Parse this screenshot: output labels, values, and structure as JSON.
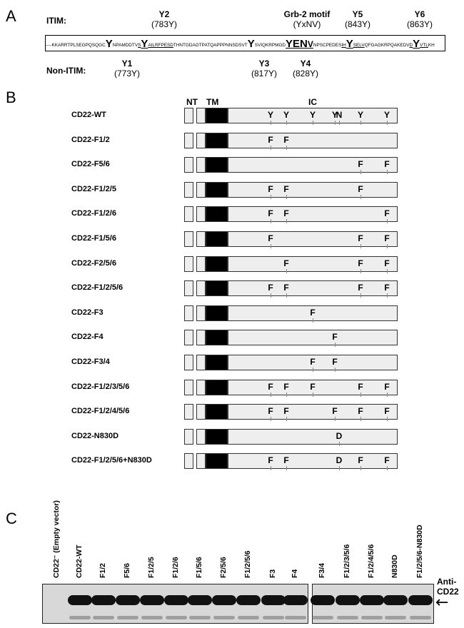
{
  "panels": {
    "a": "A",
    "b": "B",
    "c": "C"
  },
  "panel_a": {
    "itim_label": "ITIM:",
    "non_itim_label": "Non-ITIM:",
    "grb2_title": "Grb-2 motif",
    "grb2_sub": "(YxNV)",
    "tyrosines": [
      {
        "name": "Y1",
        "pos": "(773Y)"
      },
      {
        "name": "Y2",
        "pos": "(783Y)"
      },
      {
        "name": "Y3",
        "pos": "(817Y)"
      },
      {
        "name": "Y4",
        "pos": "(828Y)"
      },
      {
        "name": "Y5",
        "pos": "(843Y)"
      },
      {
        "name": "Y6",
        "pos": "(863Y)"
      }
    ],
    "sequence": {
      "s1": "----KKARRTPLSEGPQSQGC",
      "y1": "Y",
      "s2": "NPAMDDTV",
      "u1": "S",
      "y2": "Y",
      "u2": "AILRFPESD",
      "s3": "THNTGDAGTPATQAPPPNNSDSVT",
      "y3": "Y",
      "s4": "SVIQKRPMGD",
      "y4": "Y",
      "en": "EN",
      "v": "V",
      "s5": "NPSCPEDES",
      "u3": "IH",
      "y5": "Y",
      "u4": "SELV",
      "s6": "QFGAGKRPQAKEDV",
      "u5": "D",
      "y6": "Y",
      "u6": "VTL",
      "s7": "KH"
    }
  },
  "panel_b": {
    "domains": {
      "nt": "NT",
      "tm": "TM",
      "ic": "IC"
    },
    "constructs": [
      {
        "name": "CD22-WT",
        "marks": [
          "Y",
          "Y",
          "Y",
          "Y",
          "N",
          "Y",
          "Y"
        ]
      },
      {
        "name": "CD22-F1/2",
        "marks": [
          "F",
          "F",
          "",
          "",
          "",
          "",
          ""
        ]
      },
      {
        "name": "CD22-F5/6",
        "marks": [
          "",
          "",
          "",
          "",
          "",
          "F",
          "F"
        ]
      },
      {
        "name": "CD22-F1/2/5",
        "marks": [
          "F",
          "F",
          "",
          "",
          "",
          "F",
          ""
        ]
      },
      {
        "name": "CD22-F1/2/6",
        "marks": [
          "F",
          "F",
          "",
          "",
          "",
          "",
          "F"
        ]
      },
      {
        "name": "CD22-F1/5/6",
        "marks": [
          "F",
          "",
          "",
          "",
          "",
          "F",
          "F"
        ]
      },
      {
        "name": "CD22-F2/5/6",
        "marks": [
          "",
          "F",
          "",
          "",
          "",
          "F",
          "F"
        ]
      },
      {
        "name": "CD22-F1/2/5/6",
        "marks": [
          "F",
          "F",
          "",
          "",
          "",
          "F",
          "F"
        ]
      },
      {
        "name": "CD22-F3",
        "marks": [
          "",
          "",
          "F",
          "",
          "",
          "",
          ""
        ]
      },
      {
        "name": "CD22-F4",
        "marks": [
          "",
          "",
          "",
          "F",
          "",
          "",
          ""
        ]
      },
      {
        "name": "CD22-F3/4",
        "marks": [
          "",
          "",
          "F",
          "F",
          "",
          "",
          ""
        ]
      },
      {
        "name": "CD22-F1/2/3/5/6",
        "marks": [
          "F",
          "F",
          "F",
          "",
          "",
          "F",
          "F"
        ]
      },
      {
        "name": "CD22-F1/2/4/5/6",
        "marks": [
          "F",
          "F",
          "",
          "F",
          "",
          "F",
          "F"
        ]
      },
      {
        "name": "CD22-N830D",
        "marks": [
          "",
          "",
          "",
          "",
          "D",
          "",
          ""
        ]
      },
      {
        "name": "CD22-F1/2/5/6+N830D",
        "marks": [
          "F",
          "F",
          "",
          "",
          "D",
          "F",
          "F"
        ]
      }
    ]
  },
  "panel_c": {
    "lanes_left": [
      "CD22⁻ (Empty vector)",
      "CD22-WT",
      "F1/2",
      "F5/6",
      "F1/2/5",
      "F1/2/6",
      "F1/5/6",
      "F2/5/6",
      "F1/2/5/6",
      "F3",
      "F4"
    ],
    "lanes_right": [
      "F3/4",
      "F1/2/3/5/6",
      "F1/2/4/5/6",
      "N830D",
      "F1/2/5/6-N830D"
    ],
    "antibody_line1": "Anti-",
    "antibody_line2": "CD22",
    "arrow": "←",
    "band_present_left": [
      false,
      true,
      true,
      true,
      true,
      true,
      true,
      true,
      true,
      true,
      true
    ],
    "band_present_right": [
      true,
      true,
      true,
      true,
      true
    ]
  }
}
